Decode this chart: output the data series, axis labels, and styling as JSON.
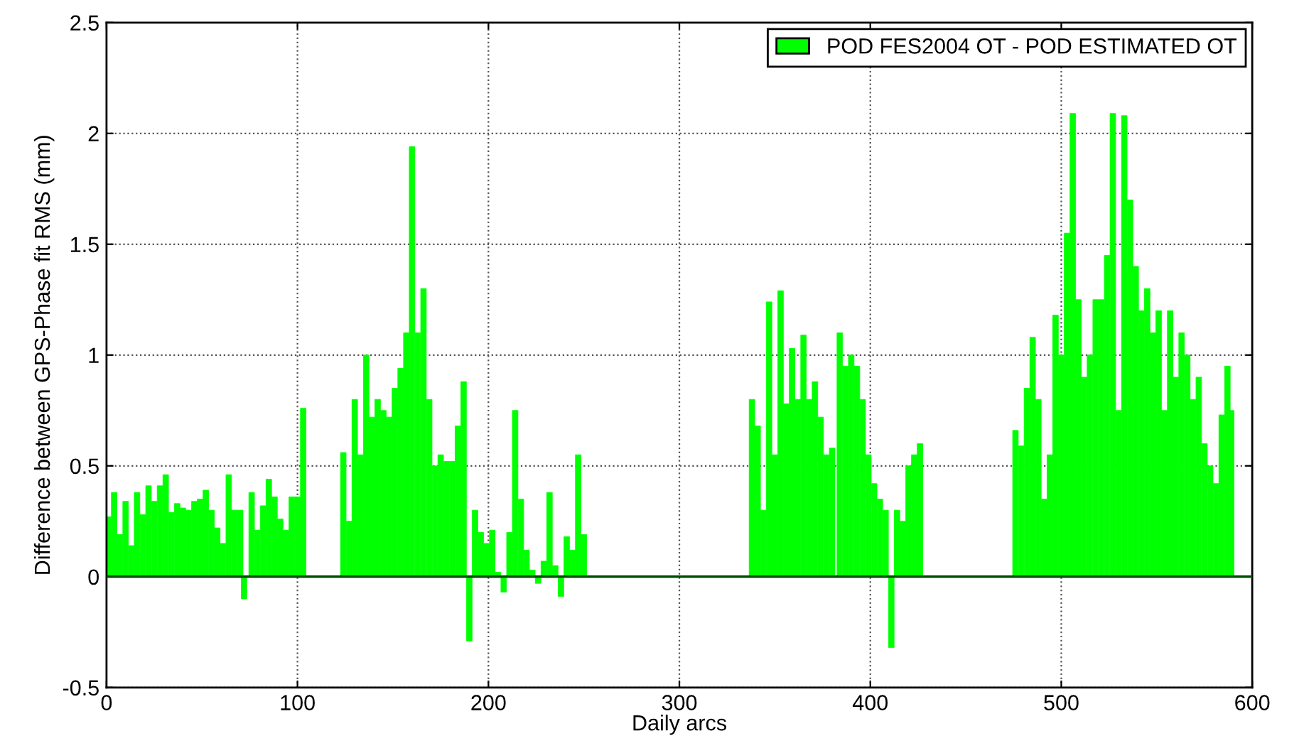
{
  "chart_data": {
    "type": "bar",
    "xlabel": "Daily arcs",
    "ylabel": "Difference between GPS-Phase fit RMS (mm)",
    "x": [
      1,
      4,
      7,
      10,
      13,
      16,
      19,
      22,
      25,
      28,
      31,
      34,
      37,
      40,
      43,
      46,
      49,
      52,
      55,
      58,
      61,
      64,
      67,
      70,
      72,
      76,
      79,
      82,
      85,
      88,
      91,
      94,
      97,
      100,
      103,
      124,
      127,
      130,
      133,
      136,
      139,
      142,
      145,
      148,
      151,
      154,
      157,
      160,
      163,
      166,
      169,
      172,
      175,
      178,
      181,
      184,
      187,
      190,
      193,
      196,
      199,
      202,
      205,
      208,
      211,
      214,
      217,
      220,
      223,
      226,
      229,
      232,
      235,
      238,
      241,
      244,
      247,
      250,
      338,
      341,
      344,
      347,
      350,
      353,
      356,
      359,
      362,
      365,
      368,
      371,
      374,
      377,
      380,
      384,
      387,
      390,
      393,
      396,
      399,
      402,
      405,
      408,
      411,
      414,
      417,
      420,
      423,
      426,
      476,
      479,
      482,
      485,
      488,
      491,
      494,
      497,
      500,
      503,
      506,
      509,
      512,
      515,
      518,
      521,
      524,
      527,
      530,
      533,
      536,
      539,
      542,
      545,
      548,
      551,
      554,
      557,
      560,
      563,
      566,
      569,
      572,
      575,
      578,
      581,
      584,
      587,
      589
    ],
    "series": [
      {
        "name": "POD FES2004 OT - POD ESTIMATED OT",
        "color": "#00ff00",
        "values": [
          0.27,
          0.38,
          0.19,
          0.34,
          0.14,
          0.38,
          0.28,
          0.41,
          0.34,
          0.41,
          0.46,
          0.29,
          0.33,
          0.31,
          0.3,
          0.34,
          0.35,
          0.39,
          0.3,
          0.22,
          0.15,
          0.46,
          0.3,
          0.3,
          -0.1,
          0.38,
          0.21,
          0.32,
          0.44,
          0.36,
          0.26,
          0.21,
          0.36,
          0.36,
          0.76,
          0.56,
          0.25,
          0.8,
          0.55,
          1.0,
          0.72,
          0.8,
          0.75,
          0.72,
          0.85,
          0.94,
          1.1,
          1.94,
          1.1,
          1.3,
          0.8,
          0.5,
          0.55,
          0.52,
          0.52,
          0.68,
          0.88,
          -0.29,
          0.3,
          0.2,
          0.15,
          0.21,
          0.02,
          -0.07,
          0.2,
          0.75,
          0.35,
          0.12,
          0.03,
          -0.03,
          0.07,
          0.38,
          0.05,
          -0.09,
          0.18,
          0.12,
          0.55,
          0.19,
          0.8,
          0.68,
          0.3,
          1.24,
          0.55,
          1.29,
          0.78,
          1.03,
          0.8,
          1.09,
          0.8,
          0.88,
          0.72,
          0.55,
          0.58,
          1.1,
          0.95,
          1.0,
          0.95,
          0.8,
          0.55,
          0.42,
          0.35,
          0.3,
          -0.32,
          0.3,
          0.25,
          0.5,
          0.55,
          0.6,
          0.66,
          0.59,
          0.85,
          1.08,
          0.8,
          0.35,
          0.55,
          1.18,
          1.0,
          1.55,
          2.09,
          1.25,
          0.9,
          1.0,
          1.25,
          1.25,
          1.45,
          2.09,
          0.75,
          2.08,
          1.7,
          1.4,
          1.2,
          1.3,
          1.1,
          1.2,
          0.75,
          1.2,
          0.9,
          1.1,
          1.0,
          0.8,
          0.9,
          0.6,
          0.5,
          0.42,
          0.73,
          0.95,
          0.75
        ]
      }
    ],
    "xlim": [
      0,
      600
    ],
    "xticks": [
      0,
      100,
      200,
      300,
      400,
      500,
      600
    ],
    "ylim": [
      -0.5,
      2.5
    ],
    "yticks": [
      -0.5,
      0,
      0.5,
      1,
      1.5,
      2,
      2.5
    ],
    "ref_lines": [
      {
        "axis": "y",
        "value": 0,
        "color": "#004d00",
        "line_style": "solid"
      }
    ],
    "grid": true,
    "legend": "top right"
  }
}
